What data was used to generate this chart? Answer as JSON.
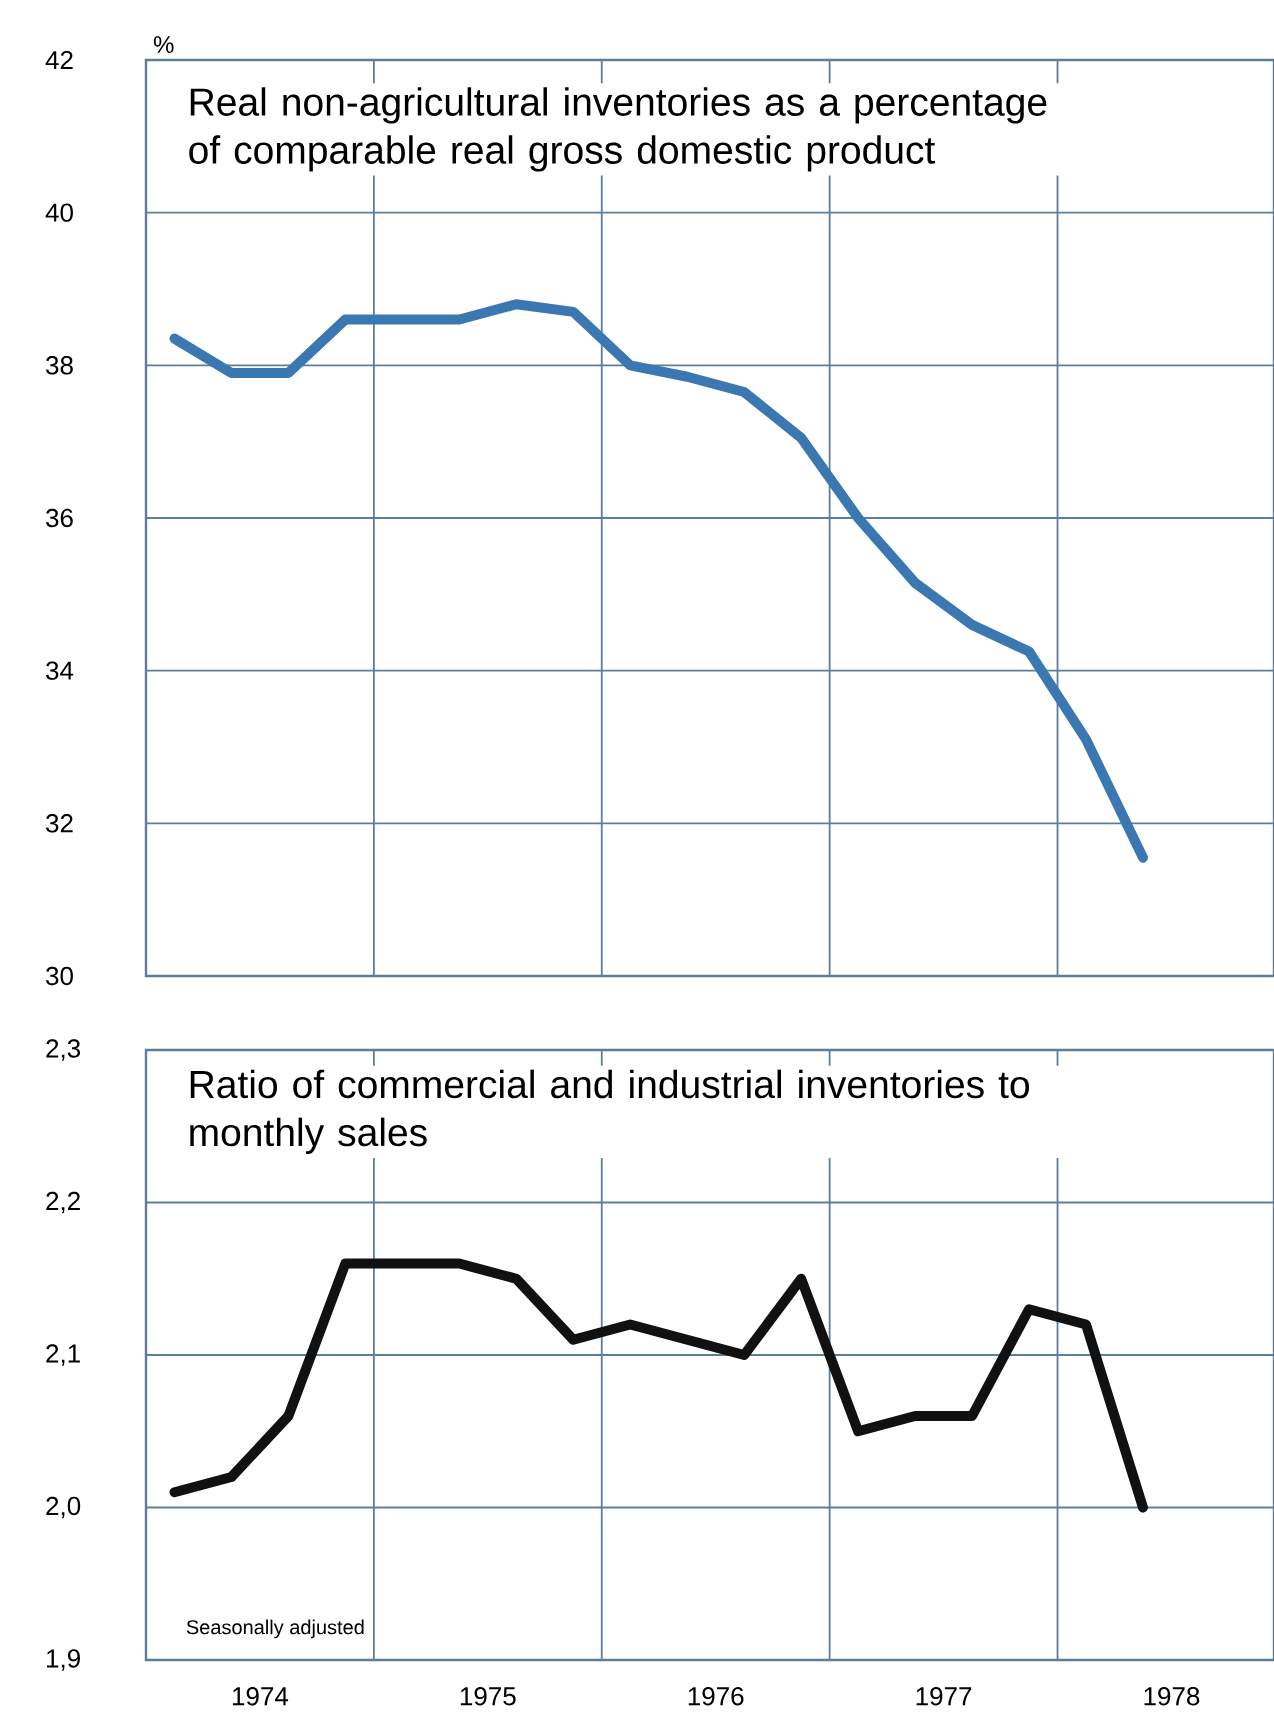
{
  "chart_data": [
    {
      "type": "line",
      "title": "Real non-agricultural inventories as a percentage of comparable real gross domestic product",
      "ylabel": "%",
      "x": [
        1974.125,
        1974.375,
        1974.625,
        1974.875,
        1975.125,
        1975.375,
        1975.625,
        1975.875,
        1976.125,
        1976.375,
        1976.625,
        1976.875,
        1977.125,
        1977.375,
        1977.625,
        1977.875,
        1978.125,
        1978.375
      ],
      "series": [
        {
          "color": "#3b78b2",
          "values": [
            38.35,
            37.9,
            37.9,
            38.6,
            38.6,
            38.6,
            38.8,
            38.7,
            38.0,
            37.85,
            37.65,
            37.05,
            36.0,
            35.15,
            34.6,
            34.25,
            33.1,
            31.55
          ]
        }
      ],
      "xlim": [
        1974,
        1978.95
      ],
      "ylim": [
        30,
        42
      ],
      "xticks": [
        {
          "value": 1974,
          "label": null
        },
        {
          "value": 1975,
          "label": null
        },
        {
          "value": 1976,
          "label": null
        },
        {
          "value": 1977,
          "label": null
        },
        {
          "value": 1978,
          "label": null
        }
      ],
      "yticks": [
        30,
        32,
        34,
        36,
        38,
        40,
        42
      ],
      "tick_labels": "y",
      "grid": true,
      "marker": "none",
      "line_style": "solid"
    },
    {
      "type": "line",
      "title": "Ratio of commercial and industrial inventories to monthly sales",
      "annotations": [
        "Seasonally adjusted"
      ],
      "x": [
        1974.125,
        1974.375,
        1974.625,
        1974.875,
        1975.125,
        1975.375,
        1975.625,
        1975.875,
        1976.125,
        1976.375,
        1976.625,
        1976.875,
        1977.125,
        1977.375,
        1977.625,
        1977.875,
        1978.125,
        1978.375
      ],
      "series": [
        {
          "color": "#111111",
          "values": [
            2.01,
            2.02,
            2.06,
            2.16,
            2.16,
            2.16,
            2.15,
            2.11,
            2.12,
            2.11,
            2.1,
            2.15,
            2.05,
            2.06,
            2.06,
            2.13,
            2.12,
            2.0
          ]
        }
      ],
      "xlim": [
        1974,
        1978.95
      ],
      "ylim": [
        1.9,
        2.3
      ],
      "xticks": [
        {
          "value": 1974,
          "label": null
        },
        {
          "value": 1975,
          "label": null
        },
        {
          "value": 1976,
          "label": null
        },
        {
          "value": 1977,
          "label": null
        },
        {
          "value": 1978,
          "label": null
        },
        {
          "value": 1974.5,
          "label": "1974"
        },
        {
          "value": 1975.5,
          "label": "1975"
        },
        {
          "value": 1976.5,
          "label": "1976"
        },
        {
          "value": 1977.5,
          "label": "1977"
        },
        {
          "value": 1978.5,
          "label": "1978"
        }
      ],
      "yticks": [
        {
          "value": 1.9,
          "label": "1,9"
        },
        {
          "value": 2.0,
          "label": "2,0"
        },
        {
          "value": 2.1,
          "label": "2,1"
        },
        {
          "value": 2.2,
          "label": "2,2"
        },
        {
          "value": 2.3,
          "label": "2,3"
        }
      ],
      "grid": true,
      "marker": "none",
      "line_style": "solid"
    }
  ]
}
